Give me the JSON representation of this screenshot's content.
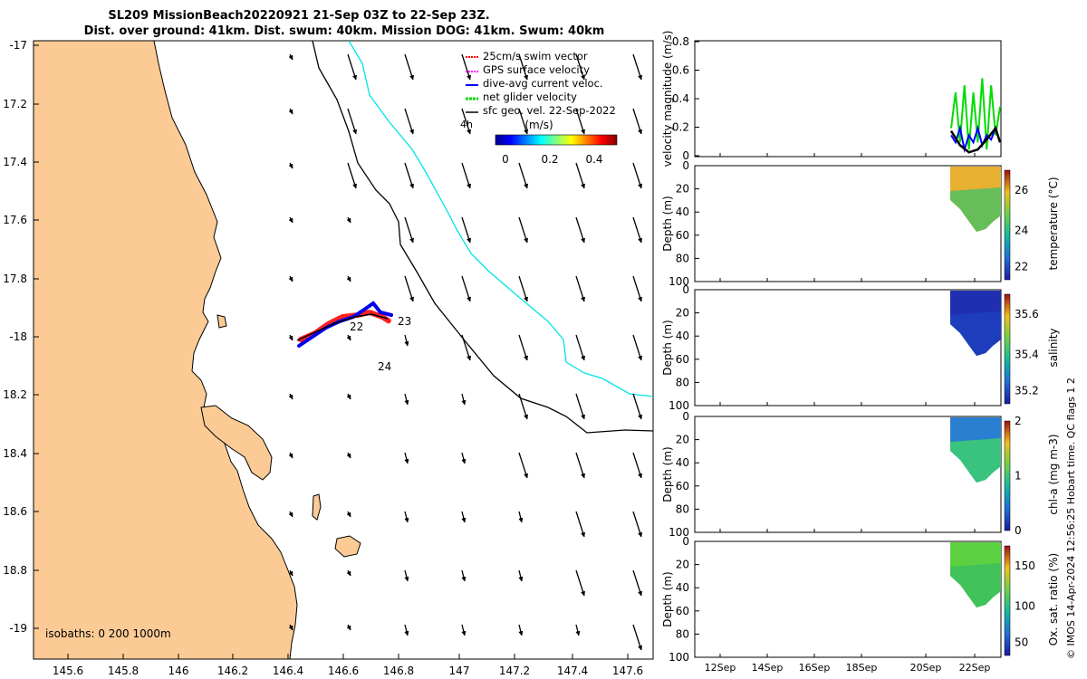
{
  "title_line1": "SL209 MissionBeach20220921 21-Sep 03Z to 22-Sep 23Z.",
  "title_line2": "Dist. over ground: 41km. Dist. swum: 40km. Mission DOG: 41km. Swum: 40km",
  "credit": "© IMOS 14-Apr-2024 12:56:25 Hobart time. QC flags 1  2",
  "map": {
    "lon_ticks": [
      "145.6",
      "145.8",
      "146",
      "146.2",
      "146.4",
      "146.6",
      "146.8",
      "147",
      "147.2",
      "147.4",
      "147.6"
    ],
    "lat_ticks": [
      "-17",
      "17.2",
      "17.4",
      "17.6",
      "17.8",
      "-18",
      "18.2",
      "18.4",
      "18.6",
      "18.8",
      "-19"
    ],
    "isobaths_label": "isobaths: 0   200  1000m",
    "day_labels": [
      "22",
      "23",
      "24",
      "4h"
    ],
    "legend": [
      {
        "label": "25cm/s swim vector",
        "color": "#ff0000"
      },
      {
        "label": "GPS surface velocity",
        "color": "#ff00ff"
      },
      {
        "label": "dive-avg current veloc.",
        "color": "#0000ff"
      },
      {
        "label": "net glider velocity",
        "color": "#00dd00"
      },
      {
        "label": "sfc geo. vel. 22-Sep-2022",
        "color": "#000000"
      }
    ],
    "colorbar_unit": "(m/s)",
    "colorbar_ticks": [
      "0",
      "0.2",
      "0.4"
    ],
    "land_color": "#fccb95",
    "isobath_200_color": "#000000",
    "isobath_1000_color": "#00e5e5"
  },
  "panels": [
    {
      "ylabel": "velocity magnitude (m/s)",
      "yticks": [
        "0",
        "0.2",
        "0.4",
        "0.6",
        "0.8"
      ]
    },
    {
      "ylabel": "Depth (m)",
      "yticks": [
        "0",
        "20",
        "40",
        "60",
        "80",
        "100"
      ],
      "cbar_label": "temperature (°C)",
      "cbar_ticks": [
        "26",
        "24",
        "22"
      ]
    },
    {
      "ylabel": "Depth (m)",
      "yticks": [
        "0",
        "20",
        "40",
        "60",
        "80",
        "100"
      ],
      "cbar_label": "salinity",
      "cbar_ticks": [
        "35.6",
        "35.4",
        "35.2"
      ]
    },
    {
      "ylabel": "Depth (m)",
      "yticks": [
        "0",
        "20",
        "40",
        "60",
        "80",
        "100"
      ],
      "cbar_label": "chl-a (mg m-3)",
      "cbar_ticks": [
        "2",
        "1",
        "0"
      ]
    },
    {
      "ylabel": "Depth (m)",
      "yticks": [
        "0",
        "20",
        "40",
        "60",
        "80",
        "100"
      ],
      "cbar_label": "Ox. sat. ratio (%)",
      "cbar_ticks": [
        "150",
        "100",
        "50"
      ]
    }
  ],
  "time_ticks": [
    "12Sep",
    "14Sep",
    "16Sep",
    "18Sep",
    "20Sep",
    "22Sep"
  ],
  "chart_data": [
    {
      "type": "scatter",
      "title": "SL209 MissionBeach20220921 21-Sep 03Z to 22-Sep 23Z.",
      "xlabel": "",
      "ylabel": "",
      "xlim": [
        145.45,
        147.7
      ],
      "ylim": [
        -19.1,
        -17.0
      ],
      "track": [
        {
          "lon": 146.42,
          "lat": -18.03
        },
        {
          "lon": 146.48,
          "lat": -18.0
        },
        {
          "lon": 146.54,
          "lat": -17.98
        },
        {
          "lon": 146.6,
          "lat": -17.96
        },
        {
          "lon": 146.66,
          "lat": -17.945
        },
        {
          "lon": 146.71,
          "lat": -17.93
        },
        {
          "lon": 146.73,
          "lat": -17.95
        }
      ]
    },
    {
      "type": "line",
      "ylabel": "velocity magnitude (m/s)",
      "xlim": [
        "11Sep",
        "23Sep"
      ],
      "ylim": [
        0,
        0.8
      ],
      "series": [
        {
          "color": "#00dd00",
          "x": [
            21.3,
            21.45,
            21.6,
            21.75,
            21.9,
            22.05,
            22.2,
            22.35,
            22.5,
            22.65,
            22.8,
            22.95
          ],
          "values": [
            0.2,
            0.45,
            0.1,
            0.5,
            0.05,
            0.45,
            0.1,
            0.55,
            0.05,
            0.5,
            0.15,
            0.35
          ]
        },
        {
          "color": "#0000ff",
          "x": [
            21.3,
            21.45,
            21.6,
            21.75,
            21.9,
            22.05,
            22.2,
            22.35,
            22.5,
            22.65,
            22.8,
            22.95
          ],
          "values": [
            0.15,
            0.1,
            0.2,
            0.05,
            0.15,
            0.1,
            0.2,
            0.08,
            0.15,
            0.12,
            0.2,
            0.1
          ]
        },
        {
          "color": "#000000",
          "x": [
            21.3,
            21.6,
            21.9,
            22.2,
            22.5,
            22.8,
            22.95
          ],
          "values": [
            0.18,
            0.08,
            0.03,
            0.05,
            0.12,
            0.2,
            0.1
          ]
        }
      ]
    }
  ]
}
